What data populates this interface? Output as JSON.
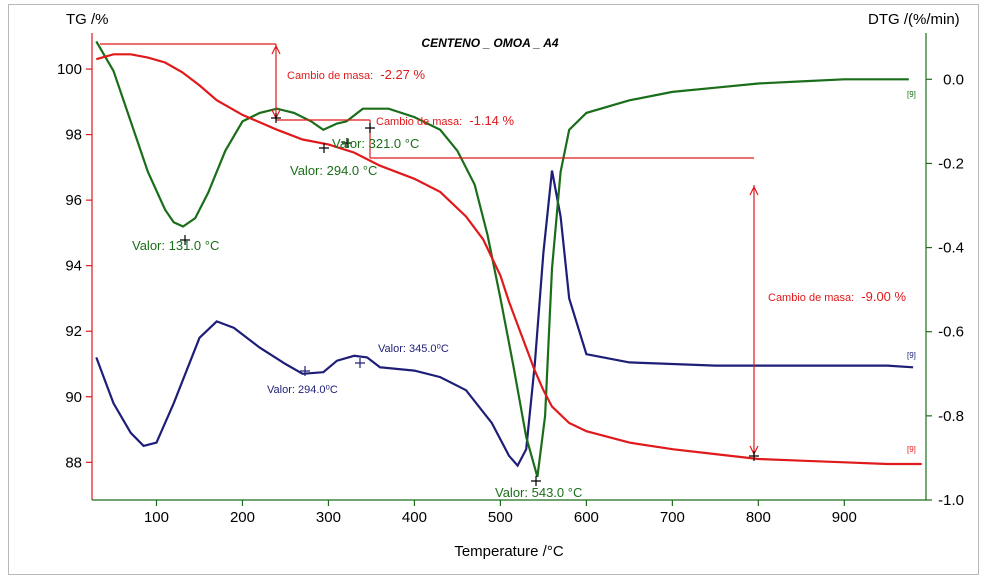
{
  "chart_data": {
    "type": "line",
    "title": "CENTENO _ OMOA _ A4",
    "xlabel": "Temperature /°C",
    "ylabel_left": "TG /%",
    "ylabel_right": "DTG /(%/min)",
    "xlim": [
      25,
      995
    ],
    "ylim_left": [
      86.85,
      101.1
    ],
    "ylim_right": [
      -1.0,
      0.11
    ],
    "x_ticks": [
      100,
      200,
      300,
      400,
      500,
      600,
      700,
      800,
      900
    ],
    "y_left_ticks": [
      88,
      90,
      92,
      94,
      96,
      98,
      100
    ],
    "y_right_ticks": [
      0.0,
      -0.2,
      -0.4,
      -0.6,
      -0.8,
      -1.0
    ],
    "y_right_tick_labels": [
      "0.0",
      "-0.2",
      "-0.4",
      "-0.6",
      "-0.8",
      "-1.0"
    ],
    "grid": false,
    "colors": {
      "tg": "#e0191b",
      "dtg": "#1a6e1a",
      "third": "#1e1e78",
      "left_axis": "#e0191b",
      "right_axis": "#1a6e1a"
    },
    "series": [
      {
        "key": "tg",
        "axis": "left",
        "x": [
          30,
          50,
          70,
          90,
          110,
          130,
          150,
          170,
          200,
          240,
          270,
          300,
          330,
          360,
          400,
          430,
          460,
          480,
          500,
          510,
          520,
          530,
          540,
          550,
          560,
          580,
          600,
          650,
          700,
          750,
          800,
          850,
          900,
          950,
          990
        ],
        "y": [
          100.3,
          100.45,
          100.45,
          100.35,
          100.2,
          99.9,
          99.5,
          99.05,
          98.6,
          98.15,
          97.85,
          97.7,
          97.45,
          97.05,
          96.65,
          96.25,
          95.5,
          94.8,
          93.7,
          92.9,
          92.2,
          91.5,
          90.8,
          90.2,
          89.7,
          89.2,
          88.95,
          88.6,
          88.4,
          88.25,
          88.1,
          88.05,
          88.0,
          87.95,
          87.95
        ]
      },
      {
        "key": "dtg",
        "axis": "right",
        "x": [
          30,
          50,
          70,
          90,
          110,
          120,
          131,
          145,
          160,
          180,
          200,
          220,
          240,
          260,
          280,
          294,
          310,
          321,
          340,
          370,
          400,
          430,
          450,
          470,
          485,
          500,
          515,
          530,
          543,
          552,
          560,
          570,
          580,
          600,
          650,
          700,
          750,
          800,
          850,
          900,
          950,
          975
        ],
        "y": [
          0.09,
          0.02,
          -0.1,
          -0.22,
          -0.31,
          -0.34,
          -0.35,
          -0.33,
          -0.27,
          -0.17,
          -0.1,
          -0.08,
          -0.07,
          -0.08,
          -0.1,
          -0.12,
          -0.105,
          -0.1,
          -0.07,
          -0.07,
          -0.09,
          -0.12,
          -0.17,
          -0.25,
          -0.37,
          -0.52,
          -0.68,
          -0.85,
          -0.945,
          -0.8,
          -0.45,
          -0.22,
          -0.12,
          -0.08,
          -0.05,
          -0.03,
          -0.02,
          -0.01,
          -0.005,
          0.0,
          0.0,
          0.0
        ]
      },
      {
        "key": "third",
        "axis": "left",
        "x": [
          30,
          50,
          70,
          85,
          100,
          120,
          150,
          170,
          190,
          220,
          250,
          270,
          294,
          310,
          330,
          345,
          360,
          400,
          430,
          460,
          490,
          510,
          520,
          530,
          540,
          550,
          560,
          570,
          580,
          600,
          650,
          700,
          750,
          800,
          850,
          900,
          950,
          980
        ],
        "y": [
          91.2,
          89.8,
          88.9,
          88.5,
          88.6,
          89.8,
          91.8,
          92.3,
          92.1,
          91.5,
          91.0,
          90.7,
          90.75,
          91.1,
          91.25,
          91.2,
          90.9,
          90.8,
          90.6,
          90.2,
          89.2,
          88.2,
          87.9,
          88.4,
          91.0,
          94.4,
          96.9,
          95.5,
          93.0,
          91.3,
          91.05,
          91.0,
          90.95,
          90.95,
          90.95,
          90.95,
          90.95,
          90.9
        ]
      }
    ],
    "tags": {
      "tg": "[9]",
      "dtg": "[9]",
      "third": "[9]"
    },
    "annotations": {
      "mass_change_1": {
        "label": "Cambio de masa:",
        "value": "-2.27 %"
      },
      "mass_change_2": {
        "label": "Cambio de masa:",
        "value": "-1.14 %"
      },
      "mass_change_3": {
        "label": "Cambio de masa:",
        "value": "-9.00 %"
      },
      "peak_131": "Valor: 131.0 °C",
      "peak_294": "Valor: 294.0 °C",
      "peak_321": "Valor: 321.0 °C",
      "peak_543": "Valor: 543.0 °C",
      "third_294": "Valor: 294.0⁰C",
      "third_345": "Valor: 345.0⁰C"
    }
  }
}
